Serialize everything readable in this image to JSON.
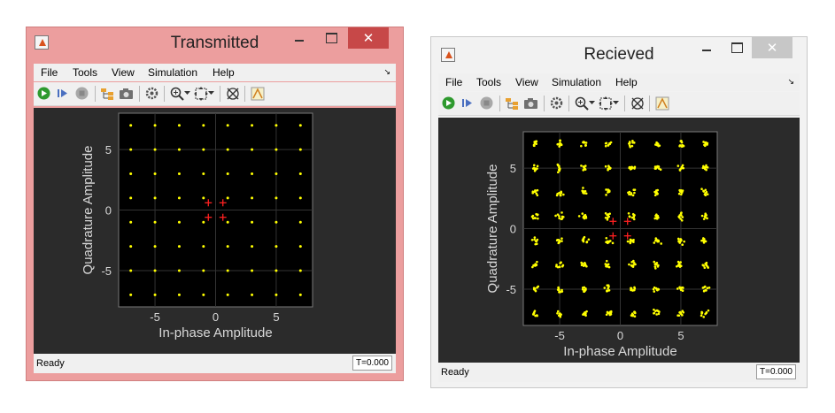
{
  "menu_items": [
    "File",
    "Tools",
    "View",
    "Simulation",
    "Help"
  ],
  "toolbar_icons": [
    "run-icon",
    "step-forward-icon",
    "stop-icon",
    "signal-hierarchy-icon",
    "camera-icon",
    "gear-icon",
    "zoom-in-icon",
    "autoscale-icon",
    "reference-constellation-icon",
    "highlight-icon"
  ],
  "colors": {
    "plot_bg": "#000000",
    "figure_bg": "#2b2b2b",
    "points": "#ffff00",
    "reference": "#ff2020",
    "close_button_active": "#c74848"
  },
  "windows": [
    {
      "title": "Transmitted",
      "status": "Ready",
      "time": "T=0.000",
      "buttons": {
        "minimize": "—",
        "maximize": "☐",
        "close": "✕"
      },
      "chart_data": {
        "type": "scatter",
        "xlabel": "In-phase Amplitude",
        "ylabel": "Quadrature Amplitude",
        "xlim": [
          -8,
          8
        ],
        "ylim": [
          -8,
          8
        ],
        "xticks": [
          "-5",
          "0",
          "5"
        ],
        "yticks": [
          "5",
          "0",
          "-5"
        ],
        "grid": true,
        "constellation_levels": [
          -7,
          -5,
          -3,
          -1,
          1,
          3,
          5,
          7
        ],
        "reference_points": [
          [
            -0.6,
            0.6
          ],
          [
            0.6,
            0.6
          ],
          [
            -0.6,
            -0.6
          ],
          [
            0.6,
            -0.6
          ]
        ],
        "noisy": false
      }
    },
    {
      "title": "Recieved",
      "status": "Ready",
      "time": "T=0.000",
      "buttons": {
        "minimize": "—",
        "maximize": "☐",
        "close": "✕"
      },
      "chart_data": {
        "type": "scatter",
        "xlabel": "In-phase Amplitude",
        "ylabel": "Quadrature Amplitude",
        "xlim": [
          -8,
          8
        ],
        "ylim": [
          -8,
          8
        ],
        "xticks": [
          "-5",
          "0",
          "5"
        ],
        "yticks": [
          "5",
          "0",
          "-5"
        ],
        "grid": true,
        "constellation_levels": [
          -7,
          -5,
          -3,
          -1,
          1,
          3,
          5,
          7
        ],
        "reference_points": [
          [
            -0.6,
            0.6
          ],
          [
            0.6,
            0.6
          ],
          [
            -0.6,
            -0.6
          ],
          [
            0.6,
            -0.6
          ]
        ],
        "noisy": true
      }
    }
  ]
}
